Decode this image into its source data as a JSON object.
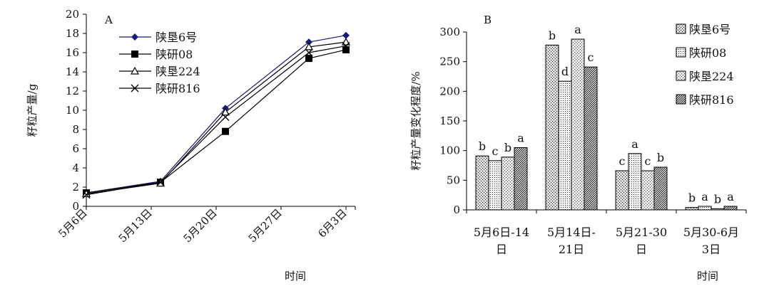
{
  "chart_data": [
    {
      "panel": "A",
      "type": "line",
      "ylabel": "籽粒产量/g",
      "xlabel": "时间",
      "ylim": [
        0,
        20
      ],
      "yticks": [
        0,
        2,
        4,
        6,
        8,
        10,
        12,
        14,
        16,
        18,
        20
      ],
      "xlim": [
        0,
        29
      ],
      "xticks": [
        {
          "label": "5月6日",
          "x": 0
        },
        {
          "label": "5月13日",
          "x": 7
        },
        {
          "label": "5月20日",
          "x": 14
        },
        {
          "label": "5月27日",
          "x": 21
        },
        {
          "label": "6月3日",
          "x": 28
        }
      ],
      "legend_position": "top-left",
      "series": [
        {
          "name": "陕垦6号",
          "marker": "diamond",
          "color": "#1a1a7a",
          "x": [
            0,
            8,
            15,
            24,
            28
          ],
          "y": [
            1.4,
            2.6,
            10.2,
            17.1,
            17.8
          ]
        },
        {
          "name": "陕研08",
          "marker": "square",
          "color": "#000000",
          "x": [
            0,
            8,
            15,
            24,
            28
          ],
          "y": [
            1.4,
            2.5,
            7.8,
            15.4,
            16.3
          ]
        },
        {
          "name": "陕垦224",
          "marker": "triangle",
          "color": "#000000",
          "x": [
            0,
            8,
            15,
            24,
            28
          ],
          "y": [
            1.3,
            2.4,
            9.8,
            16.6,
            17.1
          ]
        },
        {
          "name": "陕研816",
          "marker": "x",
          "color": "#000000",
          "x": [
            0,
            8,
            15,
            24,
            28
          ],
          "y": [
            1.2,
            2.5,
            9.3,
            16.0,
            16.7
          ]
        }
      ]
    },
    {
      "panel": "B",
      "type": "bar",
      "ylabel": "籽粒产量变化程度/%",
      "xlabel": "时间",
      "ylim": [
        0,
        300
      ],
      "yticks": [
        0,
        50,
        100,
        150,
        200,
        250,
        300
      ],
      "categories": [
        [
          "5月6日-14",
          "日"
        ],
        [
          "5月14日-",
          "21日"
        ],
        [
          "5月21-30",
          "日"
        ],
        [
          "5月30-6月",
          "3日"
        ]
      ],
      "legend_position": "top-right",
      "series": [
        {
          "name": "陕垦6号",
          "pattern": "p1",
          "values": [
            91,
            278,
            66,
            4
          ],
          "letters": [
            "b",
            "b",
            "c",
            "b"
          ]
        },
        {
          "name": "陕研08",
          "pattern": "p2",
          "values": [
            83,
            217,
            95,
            6
          ],
          "letters": [
            "c",
            "d",
            "a",
            "a"
          ]
        },
        {
          "name": "陕垦224",
          "pattern": "p3",
          "values": [
            89,
            288,
            66,
            2
          ],
          "letters": [
            "b",
            "a",
            "c",
            "b"
          ]
        },
        {
          "name": "陕研816",
          "pattern": "p4",
          "values": [
            105,
            241,
            72,
            6
          ],
          "letters": [
            "a",
            "c",
            "b",
            "a"
          ]
        }
      ]
    }
  ]
}
